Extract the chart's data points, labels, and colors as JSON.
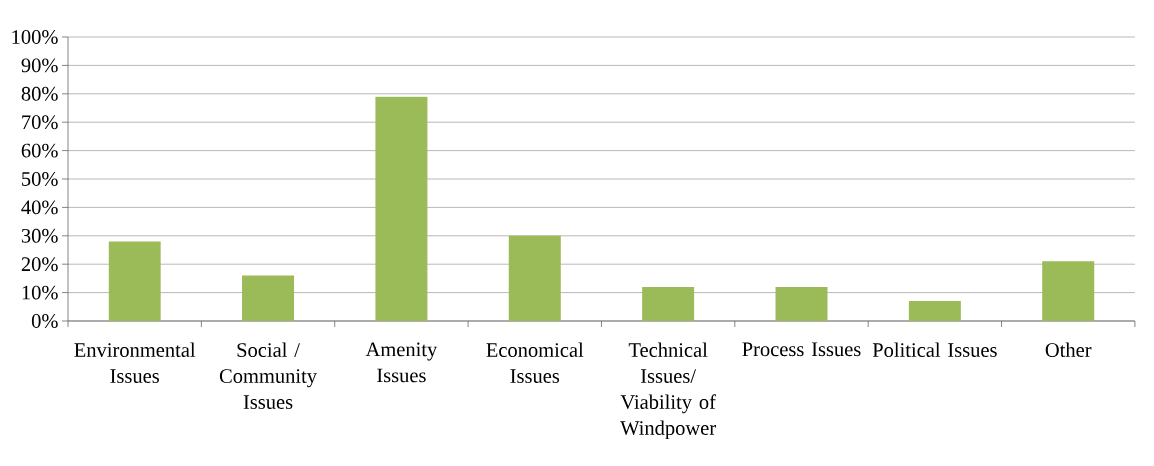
{
  "chart_data": {
    "type": "bar",
    "categories": [
      "Environmental Issues",
      "Social / Community Issues",
      "Amenity Issues",
      "Economical Issues",
      "Technical Issues/ Viability of Windpower",
      "Process Issues",
      "Political Issues",
      "Other"
    ],
    "values": [
      28,
      16,
      79,
      30,
      12,
      12,
      7,
      21
    ],
    "color": "#9bbb59",
    "ylim": [
      0,
      100
    ],
    "yticks": [
      {
        "value": 0,
        "label": "0%"
      },
      {
        "value": 10,
        "label": "10%"
      },
      {
        "value": 20,
        "label": "20%"
      },
      {
        "value": 30,
        "label": "30%"
      },
      {
        "value": 40,
        "label": "40%"
      },
      {
        "value": 50,
        "label": "50%"
      },
      {
        "value": 60,
        "label": "60%"
      },
      {
        "value": 70,
        "label": "70%"
      },
      {
        "value": 80,
        "label": "80%"
      },
      {
        "value": 90,
        "label": "90%"
      },
      {
        "value": 100,
        "label": "100%"
      }
    ],
    "grid": "y"
  }
}
